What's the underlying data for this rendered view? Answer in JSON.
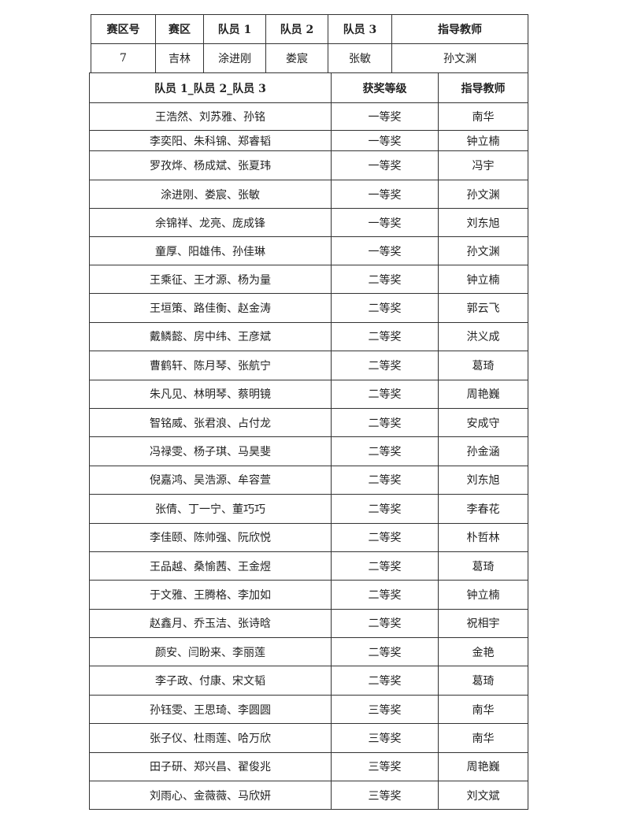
{
  "team_table": {
    "headers": [
      "赛区号",
      "赛区",
      "队员 1",
      "队员 2",
      "队员 3",
      "指导教师"
    ],
    "row": [
      "7",
      "吉林",
      "涂进刚",
      "娄宸",
      "张敏",
      "孙文渊"
    ]
  },
  "awards_table": {
    "headers": [
      "队员 1_队员 2_队员 3",
      "获奖等级",
      "指导教师"
    ],
    "rows": [
      [
        "王浩然、刘苏雅、孙铭",
        "一等奖",
        "南华"
      ],
      [
        "李奕阳、朱科锦、郑睿韬",
        "一等奖",
        "钟立楠"
      ],
      [
        "罗孜烨、杨成斌、张夏玮",
        "一等奖",
        "冯宇"
      ],
      [
        "涂进刚、娄宸、张敏",
        "一等奖",
        "孙文渊"
      ],
      [
        "余锦祥、龙亮、庞成锋",
        "一等奖",
        "刘东旭"
      ],
      [
        "童厚、阳雄伟、孙佳琳",
        "一等奖",
        "孙文渊"
      ],
      [
        "王乘征、王才源、杨为量",
        "二等奖",
        "钟立楠"
      ],
      [
        "王垣策、路佳衡、赵金涛",
        "二等奖",
        "郭云飞"
      ],
      [
        "戴鳞懿、房中纬、王彦斌",
        "二等奖",
        "洪义成"
      ],
      [
        "曹鹤轩、陈月琴、张航宁",
        "二等奖",
        "葛琦"
      ],
      [
        "朱凡见、林明琴、蔡明镜",
        "二等奖",
        "周艳巍"
      ],
      [
        "智铭威、张君浪、占付龙",
        "二等奖",
        "安成守"
      ],
      [
        "冯禄雯、杨子琪、马昊斐",
        "二等奖",
        "孙金涵"
      ],
      [
        "倪嘉鸿、吴浩源、牟容萱",
        "二等奖",
        "刘东旭"
      ],
      [
        "张倩、丁一宁、董巧巧",
        "二等奖",
        "李春花"
      ],
      [
        "李佳颐、陈帅强、阮欣悦",
        "二等奖",
        "朴哲林"
      ],
      [
        "王品越、桑愉茜、王金煜",
        "二等奖",
        "葛琦"
      ],
      [
        "于文雅、王腾格、李加如",
        "二等奖",
        "钟立楠"
      ],
      [
        "赵鑫月、乔玉洁、张诗晗",
        "二等奖",
        "祝相宇"
      ],
      [
        "颜安、闫盼来、李丽莲",
        "二等奖",
        "金艳"
      ],
      [
        "李子政、付康、宋文韬",
        "二等奖",
        "葛琦"
      ],
      [
        "孙钰雯、王思琦、李圆圆",
        "三等奖",
        "南华"
      ],
      [
        "张子仪、杜雨莲、哈万欣",
        "三等奖",
        "南华"
      ],
      [
        "田子研、郑兴昌、翟俊兆",
        "三等奖",
        "周艳巍"
      ],
      [
        "刘雨心、金薇薇、马欣妍",
        "三等奖",
        "刘文斌"
      ]
    ]
  }
}
